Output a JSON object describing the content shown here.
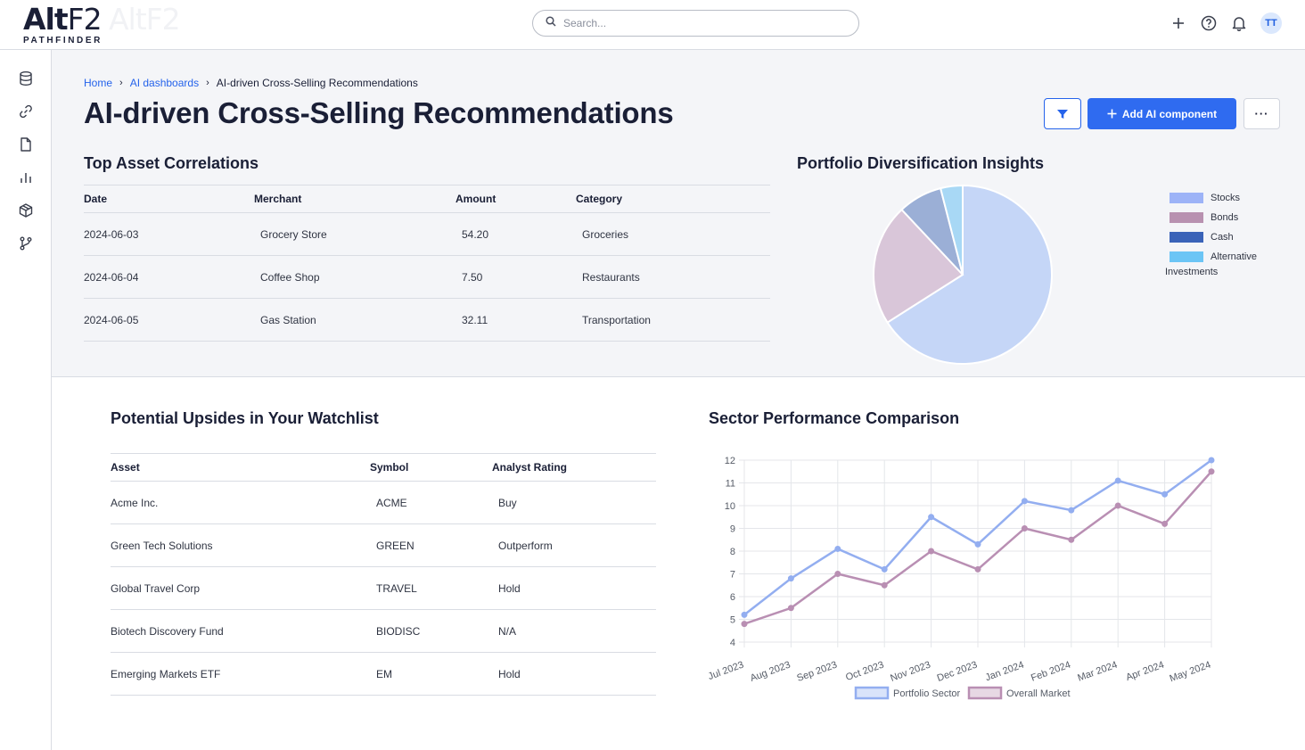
{
  "header": {
    "logo_main": "Alt",
    "logo_f2": "F2",
    "logo_sub": "PATHFINDER",
    "search_placeholder": "Search...",
    "avatar_initials": "TT"
  },
  "sidebar": {
    "items": [
      {
        "name": "sidebar-item-data",
        "icon": "database-icon"
      },
      {
        "name": "sidebar-item-connections",
        "icon": "link-icon"
      },
      {
        "name": "sidebar-item-documents",
        "icon": "document-icon"
      },
      {
        "name": "sidebar-item-dashboards",
        "icon": "bar-chart-icon"
      },
      {
        "name": "sidebar-item-models",
        "icon": "cube-icon"
      },
      {
        "name": "sidebar-item-workflows",
        "icon": "branch-icon"
      }
    ]
  },
  "breadcrumb": {
    "home": "Home",
    "dashboards": "AI dashboards",
    "current": "AI-driven Cross-Selling Recommendations"
  },
  "page": {
    "title": "AI-driven Cross-Selling Recommendations",
    "add_button": "Add AI component",
    "more_button": "···"
  },
  "correlations": {
    "title": "Top Asset Correlations",
    "columns": [
      "Date",
      "Merchant",
      "Amount",
      "Category"
    ],
    "rows": [
      [
        "2024-06-03",
        "Grocery Store",
        "54.20",
        "Groceries"
      ],
      [
        "2024-06-04",
        "Coffee Shop",
        "7.50",
        "Restaurants"
      ],
      [
        "2024-06-05",
        "Gas Station",
        "32.11",
        "Transportation"
      ]
    ]
  },
  "diversification": {
    "title": "Portfolio Diversification Insights",
    "legend_note": "Investments"
  },
  "watchlist": {
    "title": "Potential Upsides in Your Watchlist",
    "columns": [
      "Asset",
      "Symbol",
      "Analyst Rating"
    ],
    "rows": [
      [
        "Acme Inc.",
        "ACME",
        "Buy"
      ],
      [
        "Green Tech Solutions",
        "GREEN",
        "Outperform"
      ],
      [
        "Global Travel Corp",
        "TRAVEL",
        "Hold"
      ],
      [
        "Biotech Discovery Fund",
        "BIODISC",
        "N/A"
      ],
      [
        "Emerging Markets ETF",
        "EM",
        "Hold"
      ]
    ]
  },
  "sector": {
    "title": "Sector Performance Comparison"
  },
  "chart_data": [
    {
      "type": "pie",
      "title": "Portfolio Diversification Insights",
      "labels": [
        "Stocks",
        "Bonds",
        "Cash",
        "Alternative"
      ],
      "values": [
        66,
        22,
        8,
        4
      ],
      "slice_colors": [
        "#c5d6f7",
        "#d9c6d9",
        "#9bafd6",
        "#a8d8f5"
      ],
      "legend_colors": [
        "#9db3f7",
        "#b891b0",
        "#3a63b8",
        "#6cc5f5"
      ],
      "legend_position": "right"
    },
    {
      "type": "line",
      "title": "Sector Performance Comparison",
      "categories": [
        "Jul 2023",
        "Aug 2023",
        "Sep 2023",
        "Oct 2023",
        "Nov 2023",
        "Dec 2023",
        "Jan 2024",
        "Feb 2024",
        "Mar 2024",
        "Apr 2024",
        "May 2024"
      ],
      "series": [
        {
          "name": "Portfolio Sector",
          "values": [
            5.2,
            6.8,
            8.1,
            7.2,
            9.5,
            8.3,
            10.2,
            9.8,
            11.1,
            10.5,
            12.0
          ],
          "color": "#93aef0"
        },
        {
          "name": "Overall Market",
          "values": [
            4.8,
            5.5,
            7.0,
            6.5,
            8.0,
            7.2,
            9.0,
            8.5,
            10.0,
            9.2,
            11.5
          ],
          "color": "#b98fb3"
        }
      ],
      "ylim": [
        4,
        12
      ],
      "yticks": [
        4,
        5,
        6,
        7,
        8,
        9,
        10,
        11,
        12
      ],
      "grid": true,
      "legend_position": "bottom"
    }
  ]
}
